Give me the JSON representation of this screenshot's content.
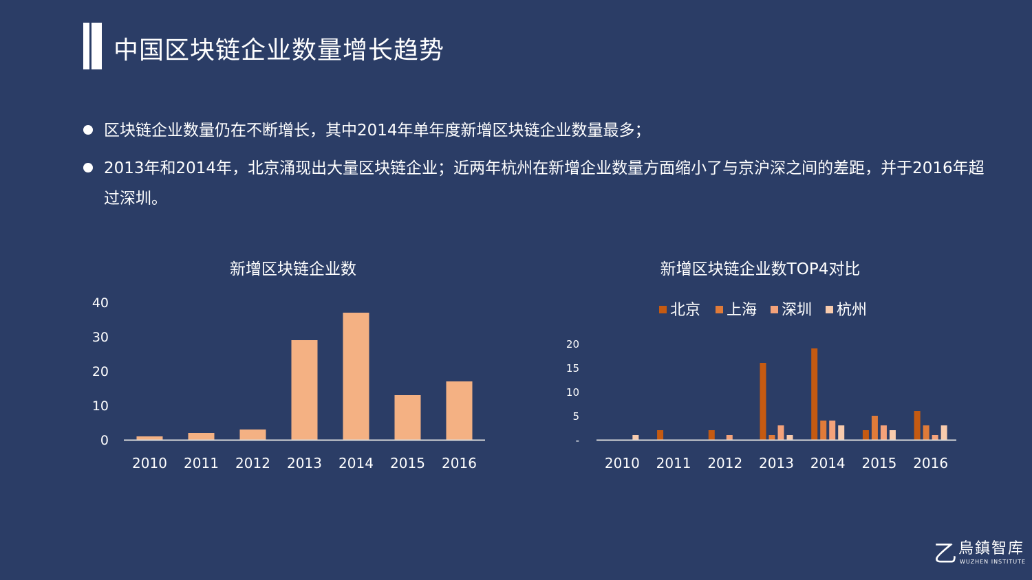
{
  "page": {
    "title": "中国区块链企业数量增长趋势",
    "bullets": [
      "区块链企业数量仍在不断增长，其中2014年单年度新增区块链企业数量最多；",
      "2013年和2014年，北京涌现出大量区块链企业；近两年杭州在新增企业数量方面缩小了与京沪深之间的差距，并于2016年超过深圳。"
    ],
    "logo": {
      "name": "烏鎮智库",
      "sub": "WUZHEN INSTITUTE",
      "mark": "乙"
    }
  },
  "chart_data": [
    {
      "type": "bar",
      "title": "新增区块链企业数",
      "categories": [
        "2010",
        "2011",
        "2012",
        "2013",
        "2014",
        "2015",
        "2016"
      ],
      "values": [
        1,
        2,
        3,
        29,
        37,
        13,
        17
      ],
      "ylim": [
        0,
        40
      ],
      "yticks": [
        "0",
        "10",
        "20",
        "30",
        "40"
      ],
      "grid": false,
      "color": "#f4b183"
    },
    {
      "type": "bar",
      "title": "新增区块链企业数TOP4对比",
      "categories": [
        "2010",
        "2011",
        "2012",
        "2013",
        "2014",
        "2015",
        "2016"
      ],
      "series": [
        {
          "name": "北京",
          "color": "#c55a11",
          "values": [
            0,
            2,
            2,
            16,
            19,
            2,
            6
          ]
        },
        {
          "name": "上海",
          "color": "#e07b39",
          "values": [
            0,
            0,
            0,
            1,
            4,
            5,
            3
          ]
        },
        {
          "name": "深圳",
          "color": "#f4a27a",
          "values": [
            0,
            0,
            1,
            3,
            4,
            3,
            1
          ]
        },
        {
          "name": "杭州",
          "color": "#f8cbad",
          "values": [
            1,
            0,
            0,
            1,
            3,
            2,
            3
          ]
        }
      ],
      "ylim": [
        0,
        20
      ],
      "yticks": [
        "-",
        "5",
        "10",
        "15",
        "20"
      ],
      "legend": "top",
      "grid": false
    }
  ]
}
